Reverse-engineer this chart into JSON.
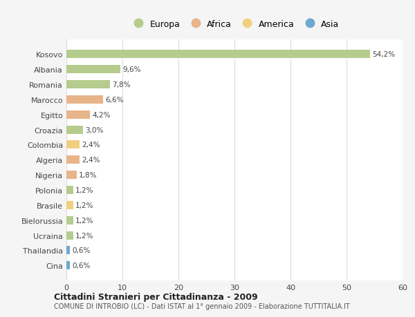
{
  "categories": [
    "Kosovo",
    "Albania",
    "Romania",
    "Marocco",
    "Egitto",
    "Croazia",
    "Colombia",
    "Algeria",
    "Nigeria",
    "Polonia",
    "Brasile",
    "Bielorussia",
    "Ucraina",
    "Thailandia",
    "Cina"
  ],
  "values": [
    54.2,
    9.6,
    7.8,
    6.6,
    4.2,
    3.0,
    2.4,
    2.4,
    1.8,
    1.2,
    1.2,
    1.2,
    1.2,
    0.6,
    0.6
  ],
  "labels": [
    "54,2%",
    "9,6%",
    "7,8%",
    "6,6%",
    "4,2%",
    "3,0%",
    "2,4%",
    "2,4%",
    "1,8%",
    "1,2%",
    "1,2%",
    "1,2%",
    "1,2%",
    "0,6%",
    "0,6%"
  ],
  "colors": [
    "#b5cc8e",
    "#b5cc8e",
    "#b5cc8e",
    "#e8b48a",
    "#e8b48a",
    "#b5cc8e",
    "#f0d080",
    "#e8b48a",
    "#e8b48a",
    "#b5cc8e",
    "#f0d080",
    "#b5cc8e",
    "#b5cc8e",
    "#6fa8d0",
    "#6fa8d0"
  ],
  "legend_labels": [
    "Europa",
    "Africa",
    "America",
    "Asia"
  ],
  "legend_colors": [
    "#b5cc8e",
    "#e8b48a",
    "#f0d080",
    "#6fa8d0"
  ],
  "title": "Cittadini Stranieri per Cittadinanza - 2009",
  "subtitle": "COMUNE DI INTROBIO (LC) - Dati ISTAT al 1° gennaio 2009 - Elaborazione TUTTITALIA.IT",
  "xlim": [
    0,
    60
  ],
  "xticks": [
    0,
    10,
    20,
    30,
    40,
    50,
    60
  ],
  "bg_color": "#f5f5f5",
  "bar_bg_color": "#ffffff",
  "grid_color": "#dddddd"
}
